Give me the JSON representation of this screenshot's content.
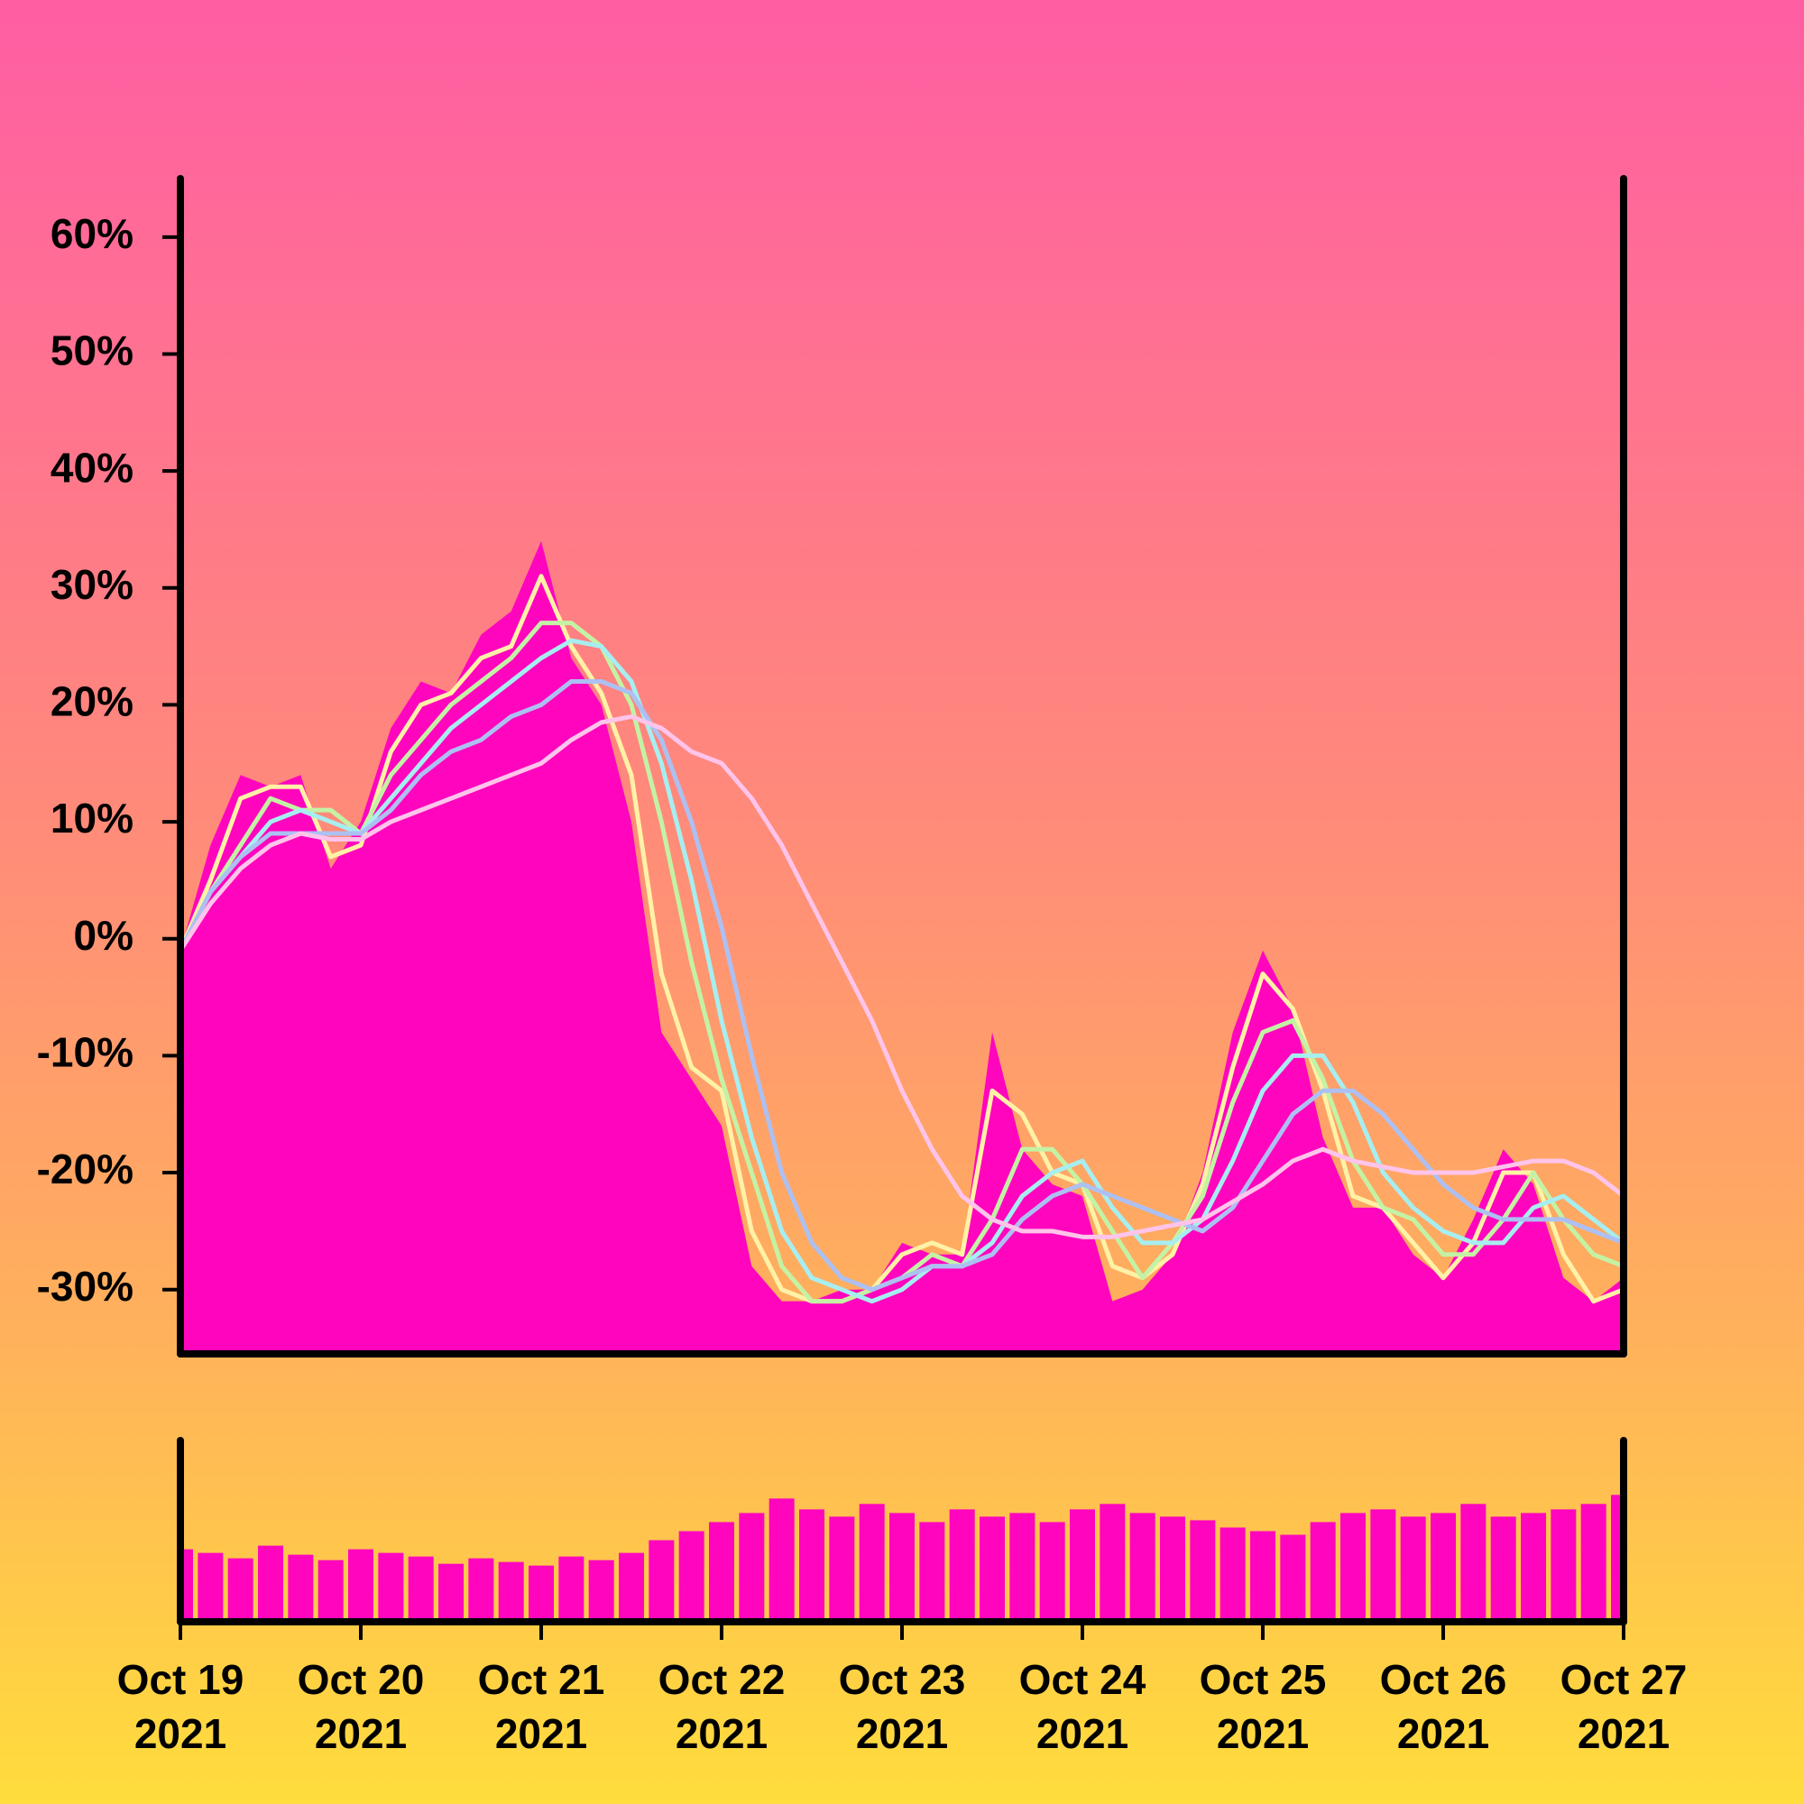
{
  "chart_data": [
    {
      "type": "area",
      "x": [
        0,
        4,
        8,
        12,
        16,
        20,
        24,
        28,
        32,
        36,
        40,
        44,
        48,
        52,
        56,
        60,
        64,
        68,
        72,
        76,
        80,
        84,
        88,
        92,
        96,
        100,
        104,
        108,
        112,
        116,
        120,
        124,
        128,
        132,
        136,
        140,
        144,
        148,
        152,
        156,
        160,
        164,
        168,
        172,
        176,
        180,
        184,
        188,
        192
      ],
      "values": [
        -1,
        8,
        14,
        13,
        14,
        6,
        10,
        18,
        22,
        21,
        26,
        28,
        34,
        24,
        20,
        10,
        -8,
        -12,
        -16,
        -28,
        -31,
        -31,
        -30,
        -30,
        -26,
        -27,
        -27,
        -8,
        -18,
        -21,
        -22,
        -31,
        -30,
        -27,
        -20,
        -8,
        -1,
        -6,
        -17,
        -23,
        -23,
        -27,
        -29,
        -24,
        -18,
        -21,
        -29,
        -31,
        -29
      ],
      "color": "#ff05be",
      "lines": [
        {
          "color": "#fff1a6",
          "values": [
            -1,
            5,
            12,
            13,
            13,
            7,
            8,
            16,
            20,
            21,
            24,
            25,
            31,
            25,
            21,
            14,
            -3,
            -11,
            -13,
            -25,
            -30,
            -31,
            -31,
            -30,
            -27,
            -26,
            -27,
            -13,
            -15,
            -20,
            -21,
            -28,
            -29,
            -27,
            -21,
            -11,
            -3,
            -6,
            -13,
            -22,
            -23,
            -26,
            -29,
            -26,
            -20,
            -20,
            -27,
            -31,
            -30
          ]
        },
        {
          "color": "#c4f2a4",
          "values": [
            -1,
            4,
            8,
            12,
            11,
            11,
            9,
            14,
            17,
            20,
            22,
            24,
            27,
            27,
            25,
            20,
            10,
            -2,
            -12,
            -20,
            -28,
            -31,
            -31,
            -30,
            -29,
            -27,
            -28,
            -24,
            -18,
            -18,
            -21,
            -25,
            -29,
            -26,
            -22,
            -14,
            -8,
            -7,
            -12,
            -19,
            -23,
            -24,
            -27,
            -27,
            -24,
            -20,
            -24,
            -27,
            -28
          ]
        },
        {
          "color": "#a6eef0",
          "values": [
            -1,
            4,
            7,
            10,
            11,
            10,
            9,
            12,
            15,
            18,
            20,
            22,
            24,
            25.5,
            25,
            22,
            15,
            5,
            -7,
            -17,
            -25,
            -29,
            -30,
            -31,
            -30,
            -28,
            -28,
            -26,
            -22,
            -20,
            -19,
            -23,
            -26,
            -26,
            -24,
            -19,
            -13,
            -10,
            -10,
            -14,
            -20,
            -23,
            -25,
            -26,
            -26,
            -23,
            -22,
            -24,
            -26
          ]
        },
        {
          "color": "#adc0f2",
          "values": [
            -1,
            4,
            7,
            9,
            9,
            9,
            9,
            11,
            14,
            16,
            17,
            19,
            20,
            22,
            22,
            21,
            17,
            10,
            1,
            -10,
            -20,
            -26,
            -29,
            -30,
            -29,
            -28,
            -28,
            -27,
            -24,
            -22,
            -21,
            -22,
            -23,
            -24,
            -25,
            -23,
            -19,
            -15,
            -13,
            -13,
            -15,
            -18,
            -21,
            -23,
            -24,
            -24,
            -24,
            -25,
            -26
          ]
        },
        {
          "color": "#ffc4ea",
          "values": [
            -1,
            3,
            6,
            8,
            9,
            8.5,
            8.5,
            10,
            11,
            12,
            13,
            14,
            15,
            17,
            18.5,
            19,
            18,
            16,
            15,
            12,
            8,
            3,
            -2,
            -7,
            -13,
            -18,
            -22,
            -24,
            -25,
            -25,
            -25.5,
            -25.5,
            -25,
            -24.5,
            -24,
            -22.5,
            -21,
            -19,
            -18,
            -19,
            -19.5,
            -20,
            -20,
            -20,
            -19.5,
            -19,
            -19,
            -20,
            -22
          ]
        }
      ],
      "xlim": [
        0,
        192
      ],
      "ylim": [
        -35.5,
        65
      ],
      "yticks": [
        {
          "value": 60,
          "label": "60%"
        },
        {
          "value": 50,
          "label": "50%"
        },
        {
          "value": 40,
          "label": "40%"
        },
        {
          "value": 30,
          "label": "30%"
        },
        {
          "value": 20,
          "label": "20%"
        },
        {
          "value": 10,
          "label": "10%"
        },
        {
          "value": 0,
          "label": "0%"
        },
        {
          "value": -10,
          "label": "-10%"
        },
        {
          "value": -20,
          "label": "-20%"
        },
        {
          "value": -30,
          "label": "-30%"
        }
      ]
    },
    {
      "type": "bar",
      "x": [
        0,
        4,
        8,
        12,
        16,
        20,
        24,
        28,
        32,
        36,
        40,
        44,
        48,
        52,
        56,
        60,
        64,
        68,
        72,
        76,
        80,
        84,
        88,
        92,
        96,
        100,
        104,
        108,
        112,
        116,
        120,
        124,
        128,
        132,
        136,
        140,
        144,
        148,
        152,
        156,
        160,
        164,
        168,
        172,
        176,
        180,
        184,
        188,
        192
      ],
      "values": [
        40,
        38,
        35,
        42,
        37,
        34,
        40,
        38,
        36,
        32,
        35,
        33,
        31,
        36,
        34,
        38,
        45,
        50,
        55,
        60,
        68,
        62,
        58,
        65,
        60,
        55,
        62,
        58,
        60,
        55,
        62,
        65,
        60,
        58,
        56,
        52,
        50,
        48,
        55,
        60,
        62,
        58,
        60,
        65,
        58,
        60,
        62,
        65,
        70
      ],
      "color": "#ff05be",
      "xlim": [
        0,
        192
      ],
      "ylim": [
        0,
        100
      ],
      "xticks": [
        {
          "value": 0,
          "label": "Oct 19\n2021"
        },
        {
          "value": 24,
          "label": "Oct 20\n2021"
        },
        {
          "value": 48,
          "label": "Oct 21\n2021"
        },
        {
          "value": 72,
          "label": "Oct 22\n2021"
        },
        {
          "value": 96,
          "label": "Oct 23\n2021"
        },
        {
          "value": 120,
          "label": "Oct 24\n2021"
        },
        {
          "value": 144,
          "label": "Oct 25\n2021"
        },
        {
          "value": 168,
          "label": "Oct 26\n2021"
        },
        {
          "value": 192,
          "label": "Oct 27\n2021"
        }
      ]
    }
  ]
}
